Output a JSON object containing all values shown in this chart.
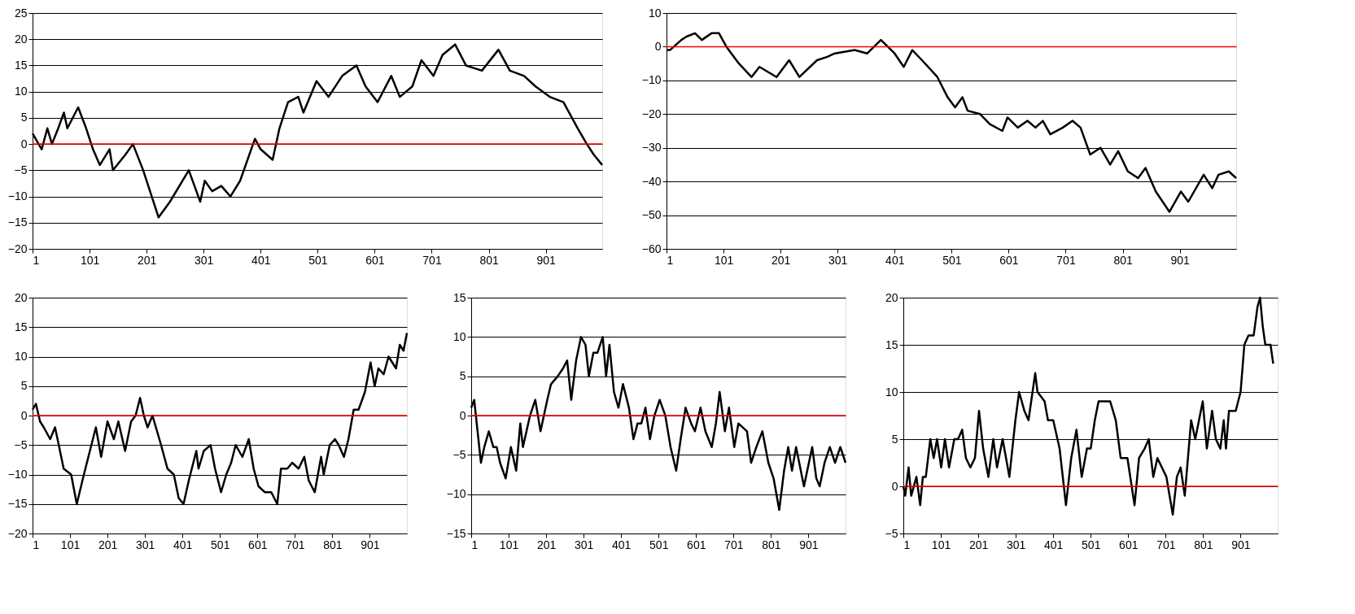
{
  "chart_data": [
    {
      "type": "line",
      "xlim": [
        1,
        1000
      ],
      "xticks": [
        1,
        101,
        201,
        301,
        401,
        501,
        601,
        701,
        801,
        901
      ],
      "ylim": [
        -20,
        25
      ],
      "yticks": [
        -20,
        -15,
        -10,
        -5,
        0,
        5,
        10,
        15,
        20,
        25
      ],
      "grid": "y",
      "ref_lines": [
        {
          "axis": "y",
          "value": 0,
          "color": "#ff0000"
        }
      ],
      "series": [
        {
          "color": "#000000",
          "x": [
            1,
            17,
            27,
            35,
            46,
            56,
            62,
            81,
            95,
            107,
            119,
            136,
            142,
            164,
            177,
            195,
            222,
            242,
            275,
            295,
            303,
            316,
            332,
            348,
            365,
            391,
            401,
            422,
            434,
            449,
            467,
            476,
            499,
            520,
            544,
            569,
            585,
            606,
            630,
            645,
            667,
            683,
            704,
            720,
            742,
            761,
            789,
            818,
            838,
            863,
            883,
            908,
            932,
            957,
            973,
            985,
            1000
          ],
          "values": [
            2,
            -1,
            3,
            0,
            3,
            6,
            3,
            7,
            3,
            -1,
            -4,
            -1,
            -5,
            -2,
            0,
            -5,
            -14,
            -11,
            -5,
            -11,
            -7,
            -9,
            -8,
            -10,
            -7,
            1,
            -1,
            -3,
            3,
            8,
            9,
            6,
            12,
            9,
            13,
            15,
            11,
            8,
            13,
            9,
            11,
            16,
            13,
            17,
            19,
            15,
            14,
            18,
            14,
            13,
            11,
            9,
            8,
            3,
            0,
            -2,
            -4
          ]
        }
      ]
    },
    {
      "type": "line",
      "xlim": [
        1,
        1000
      ],
      "xticks": [
        1,
        101,
        201,
        301,
        401,
        501,
        601,
        701,
        801,
        901
      ],
      "ylim": [
        -60,
        10
      ],
      "yticks": [
        -60,
        -50,
        -40,
        -30,
        -20,
        -10,
        0,
        10
      ],
      "grid": "y",
      "ref_lines": [
        {
          "axis": "y",
          "value": 0,
          "color": "#ff0000"
        }
      ],
      "series": [
        {
          "color": "#000000",
          "x": [
            1,
            7,
            27,
            36,
            51,
            63,
            80,
            93,
            106,
            128,
            150,
            164,
            194,
            216,
            234,
            265,
            283,
            296,
            331,
            353,
            377,
            401,
            417,
            432,
            449,
            476,
            494,
            507,
            520,
            529,
            551,
            568,
            590,
            599,
            617,
            634,
            648,
            661,
            674,
            696,
            713,
            727,
            744,
            762,
            779,
            793,
            810,
            828,
            841,
            859,
            883,
            903,
            916,
            943,
            958,
            969,
            987,
            1000
          ],
          "values": [
            -1,
            -1,
            2,
            3,
            4,
            2,
            4,
            4,
            0,
            -5,
            -9,
            -6,
            -9,
            -4,
            -9,
            -4,
            -3,
            -2,
            -1,
            -2,
            2,
            -2,
            -6,
            -1,
            -4,
            -9,
            -15,
            -18,
            -15,
            -19,
            -20,
            -23,
            -25,
            -21,
            -24,
            -22,
            -24,
            -22,
            -26,
            -24,
            -22,
            -24,
            -32,
            -30,
            -35,
            -31,
            -37,
            -39,
            -36,
            -43,
            -49,
            -43,
            -46,
            -38,
            -42,
            -38,
            -37,
            -39
          ]
        }
      ]
    },
    {
      "type": "line",
      "xlim": [
        1,
        1000
      ],
      "xticks": [
        1,
        101,
        201,
        301,
        401,
        501,
        601,
        701,
        801,
        901
      ],
      "ylim": [
        -20,
        20
      ],
      "yticks": [
        -20,
        -15,
        -10,
        -5,
        0,
        5,
        10,
        15,
        20
      ],
      "grid": "y",
      "ref_lines": [
        {
          "axis": "y",
          "value": 0,
          "color": "#ff0000"
        }
      ],
      "series": [
        {
          "color": "#000000",
          "x": [
            1,
            10,
            21,
            31,
            48,
            61,
            71,
            84,
            104,
            119,
            138,
            158,
            170,
            184,
            201,
            218,
            230,
            248,
            264,
            276,
            288,
            298,
            308,
            321,
            344,
            361,
            378,
            391,
            404,
            418,
            438,
            444,
            458,
            476,
            488,
            504,
            518,
            531,
            543,
            561,
            578,
            591,
            604,
            621,
            638,
            654,
            664,
            681,
            694,
            711,
            726,
            738,
            754,
            771,
            778,
            794,
            808,
            818,
            832,
            844,
            858,
            871,
            888,
            903,
            914,
            924,
            938,
            951,
            961,
            971,
            981,
            991,
            1000
          ],
          "values": [
            1,
            2,
            -1,
            -2,
            -4,
            -2,
            -5,
            -9,
            -10,
            -15,
            -10,
            -5,
            -2,
            -7,
            -1,
            -4,
            -1,
            -6,
            -1,
            0,
            3,
            0,
            -2,
            0,
            -5,
            -9,
            -10,
            -14,
            -15,
            -11,
            -6,
            -9,
            -6,
            -5,
            -9,
            -13,
            -10,
            -8,
            -5,
            -7,
            -4,
            -9,
            -12,
            -13,
            -13,
            -15,
            -9,
            -9,
            -8,
            -9,
            -7,
            -11,
            -13,
            -7,
            -10,
            -5,
            -4,
            -5,
            -7,
            -4,
            1,
            1,
            4,
            9,
            5,
            8,
            7,
            10,
            9,
            8,
            12,
            11,
            14
          ]
        }
      ]
    },
    {
      "type": "line",
      "xlim": [
        1,
        1000
      ],
      "xticks": [
        1,
        101,
        201,
        301,
        401,
        501,
        601,
        701,
        801,
        901
      ],
      "ylim": [
        -15,
        15
      ],
      "yticks": [
        -15,
        -10,
        -5,
        0,
        5,
        10,
        15
      ],
      "grid": "y",
      "ref_lines": [
        {
          "axis": "y",
          "value": 0,
          "color": "#ff0000"
        }
      ],
      "series": [
        {
          "color": "#000000",
          "x": [
            1,
            9,
            27,
            36,
            48,
            60,
            69,
            78,
            93,
            107,
            121,
            132,
            139,
            158,
            172,
            186,
            204,
            214,
            232,
            246,
            257,
            268,
            281,
            294,
            306,
            315,
            327,
            338,
            352,
            361,
            370,
            382,
            394,
            406,
            422,
            434,
            445,
            455,
            466,
            478,
            490,
            504,
            519,
            533,
            548,
            560,
            573,
            588,
            598,
            613,
            626,
            643,
            654,
            664,
            678,
            689,
            703,
            714,
            737,
            748,
            762,
            778,
            794,
            808,
            823,
            836,
            847,
            857,
            868,
            889,
            911,
            922,
            931,
            944,
            958,
            972,
            986,
            1000
          ],
          "values": [
            1,
            2,
            -6,
            -4,
            -2,
            -4,
            -4,
            -6,
            -8,
            -4,
            -7,
            -1,
            -4,
            0,
            2,
            -2,
            2,
            4,
            5,
            6,
            7,
            2,
            7,
            10,
            9,
            5,
            8,
            8,
            10,
            5,
            9,
            3,
            1,
            4,
            1,
            -3,
            -1,
            -1,
            1,
            -3,
            0,
            2,
            0,
            -4,
            -7,
            -3,
            1,
            -1,
            -2,
            1,
            -2,
            -4,
            -1,
            3,
            -2,
            1,
            -4,
            -1,
            -2,
            -6,
            -4,
            -2,
            -6,
            -8,
            -12,
            -7,
            -4,
            -7,
            -4,
            -9,
            -4,
            -8,
            -9,
            -6,
            -4,
            -6,
            -4,
            -6
          ]
        }
      ]
    },
    {
      "type": "line",
      "xlim": [
        1,
        1000
      ],
      "xticks": [
        1,
        101,
        201,
        301,
        401,
        501,
        601,
        701,
        801,
        901
      ],
      "ylim": [
        -5,
        20
      ],
      "yticks": [
        -5,
        0,
        5,
        10,
        15,
        20
      ],
      "grid": "y",
      "ref_lines": [
        {
          "axis": "y",
          "value": 0,
          "color": "#ff0000"
        }
      ],
      "series": [
        {
          "color": "#000000",
          "x": [
            1,
            6,
            15,
            22,
            36,
            46,
            53,
            61,
            73,
            82,
            91,
            102,
            112,
            123,
            137,
            147,
            158,
            168,
            180,
            192,
            203,
            214,
            228,
            241,
            251,
            266,
            284,
            300,
            310,
            324,
            335,
            353,
            359,
            378,
            387,
            401,
            418,
            435,
            449,
            463,
            477,
            491,
            501,
            512,
            522,
            553,
            568,
            581,
            599,
            618,
            630,
            645,
            656,
            668,
            679,
            703,
            720,
            731,
            741,
            752,
            769,
            780,
            790,
            800,
            811,
            825,
            835,
            847,
            856,
            862,
            870,
            888,
            901,
            911,
            922,
            936,
            946,
            953,
            960,
            967,
            981,
            988
          ],
          "values": [
            0,
            -1,
            2,
            -1,
            1,
            -2,
            1,
            1,
            5,
            3,
            5,
            2,
            5,
            2,
            5,
            5,
            6,
            3,
            2,
            3,
            8,
            4,
            1,
            5,
            2,
            5,
            1,
            7,
            10,
            8,
            7,
            12,
            10,
            9,
            7,
            7,
            4,
            -2,
            3,
            6,
            1,
            4,
            4,
            7,
            9,
            9,
            7,
            3,
            3,
            -2,
            3,
            4,
            5,
            1,
            3,
            1,
            -3,
            1,
            2,
            -1,
            7,
            5,
            7,
            9,
            4,
            8,
            5,
            4,
            7,
            4,
            8,
            8,
            10,
            15,
            16,
            16,
            19,
            20,
            17,
            15,
            15,
            13
          ]
        }
      ]
    }
  ]
}
